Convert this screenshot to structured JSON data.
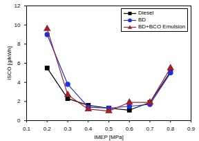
{
  "chart_data": {
    "type": "line",
    "x_label": "IMEP [MPa]",
    "y_label": "ISCO [g/kWh]",
    "x": [
      0.2,
      0.3,
      0.4,
      0.5,
      0.6,
      0.7,
      0.8
    ],
    "series": [
      {
        "name": "Diesel",
        "color": "#000000",
        "marker": "square",
        "values": [
          5.5,
          2.3,
          1.6,
          1.3,
          1.1,
          1.9,
          5.1
        ]
      },
      {
        "name": "BD",
        "color": "#1f2fe0",
        "marker": "circle",
        "values": [
          9.0,
          3.8,
          1.4,
          1.3,
          1.5,
          1.7,
          5.0
        ]
      },
      {
        "name": "BD+BCO Emulsion",
        "color": "#a0202a",
        "marker": "triangle",
        "values": [
          9.6,
          2.7,
          1.2,
          1.0,
          1.9,
          1.9,
          5.5
        ]
      }
    ],
    "xlim": [
      0.1,
      0.9
    ],
    "xticks": [
      0.1,
      0.2,
      0.3,
      0.4,
      0.5,
      0.6,
      0.7,
      0.8,
      0.9
    ],
    "ylim": [
      0,
      12
    ],
    "yticks": [
      0,
      2,
      4,
      6,
      8,
      10,
      12
    ],
    "legend": "top-right",
    "grid": false
  }
}
